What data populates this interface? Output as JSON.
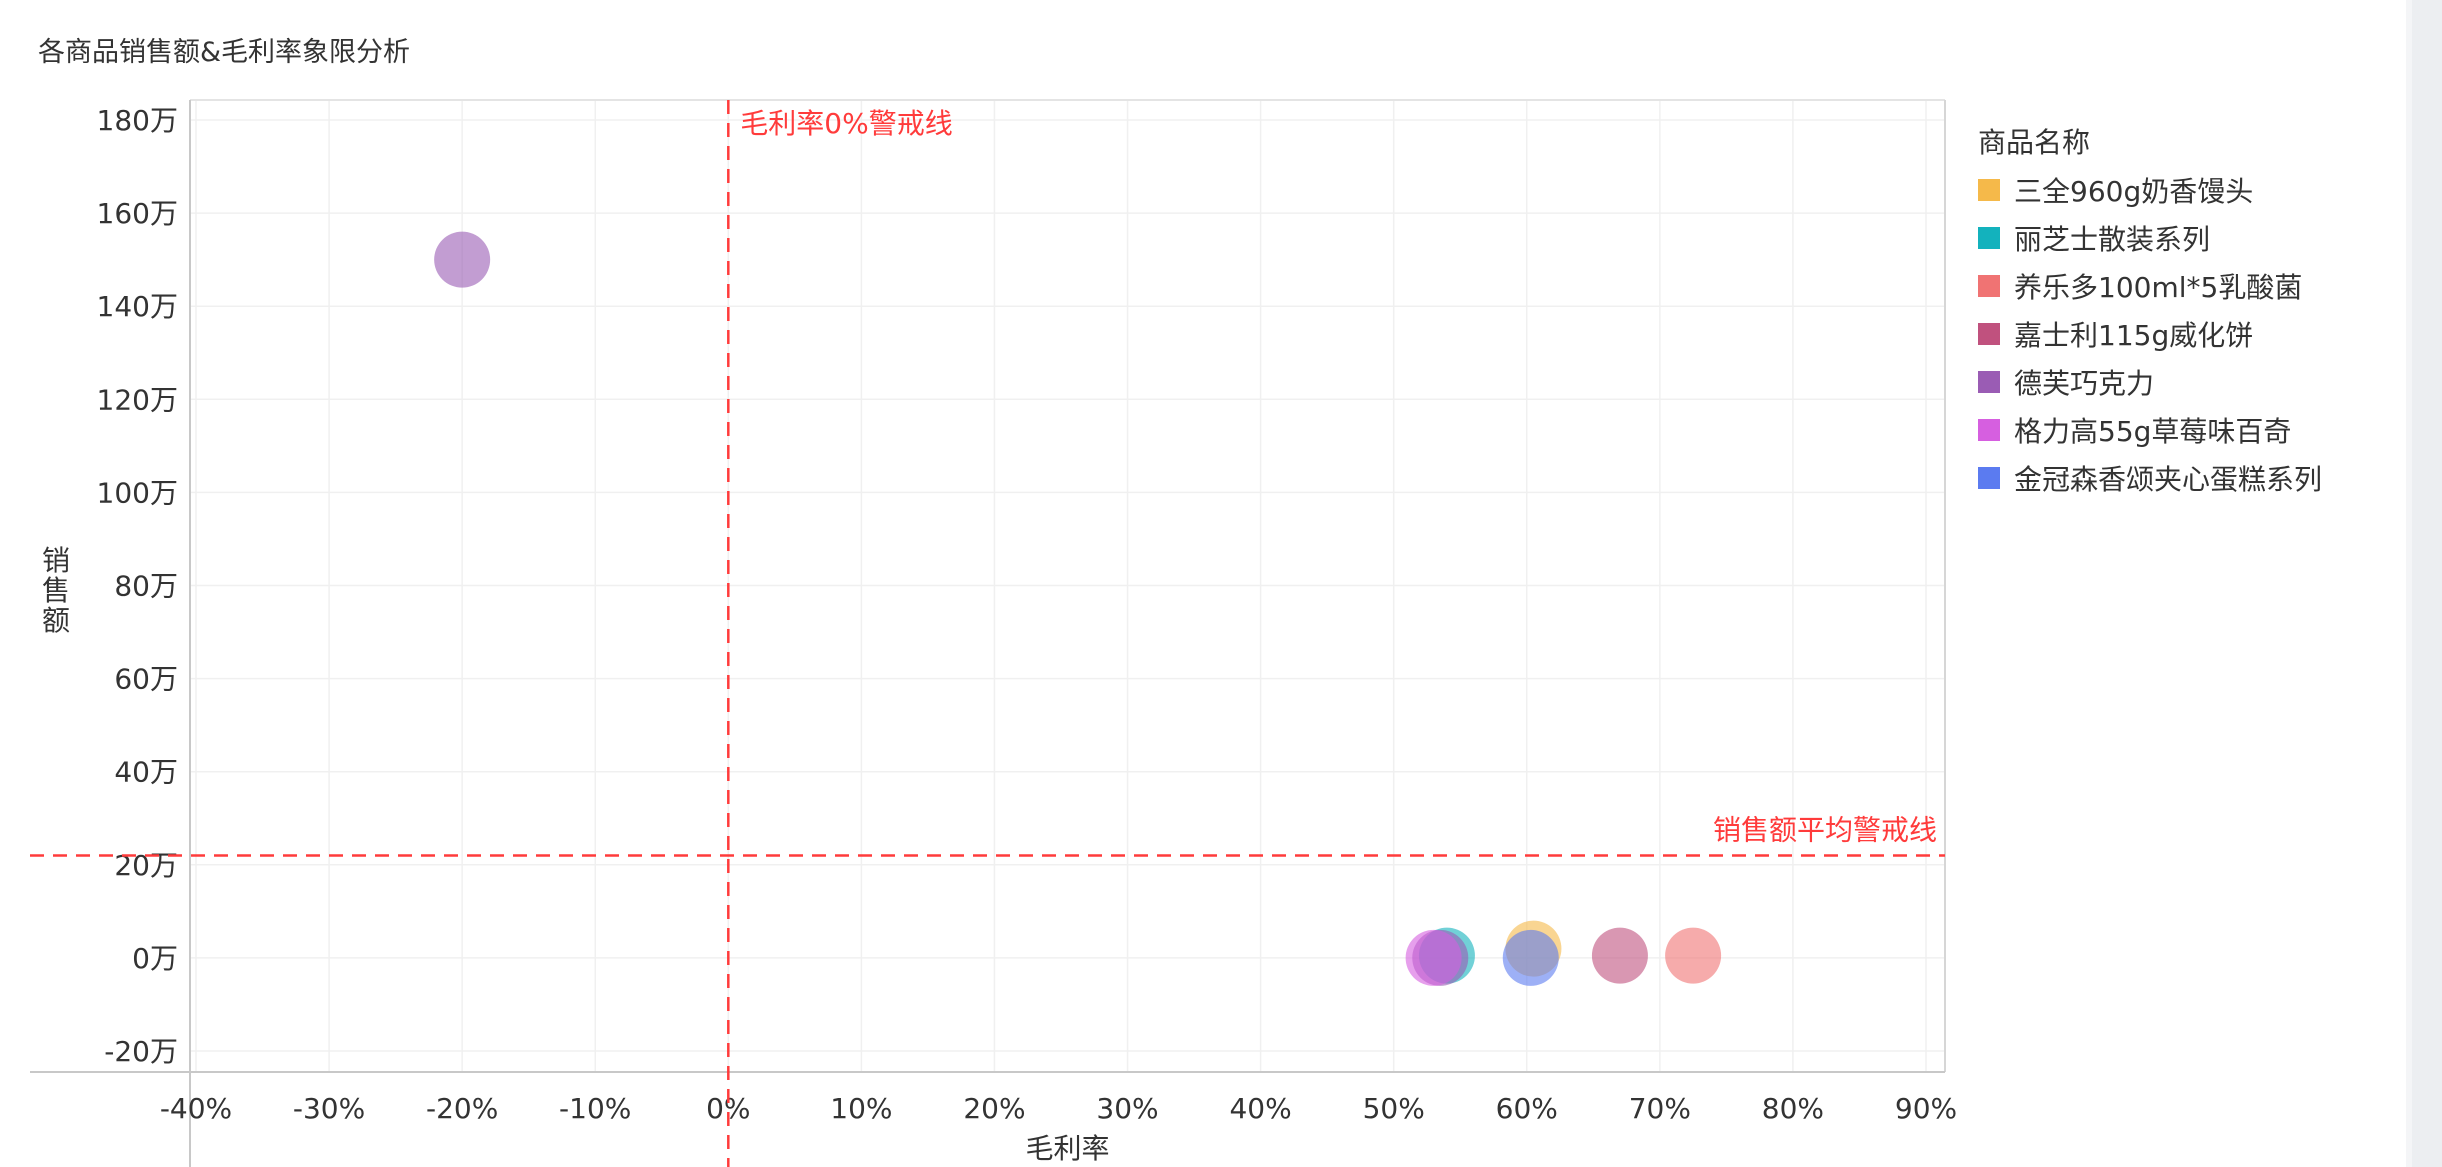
{
  "chart_data": {
    "type": "scatter",
    "title": "各商品销售额&毛利率象限分析",
    "xlabel": "毛利率",
    "ylabel": "销售额",
    "x_ticks": [
      "-40%",
      "-30%",
      "-20%",
      "-10%",
      "0%",
      "10%",
      "20%",
      "30%",
      "40%",
      "50%",
      "60%",
      "70%",
      "80%",
      "90%"
    ],
    "x_tick_values": [
      -0.4,
      -0.3,
      -0.2,
      -0.1,
      0,
      0.1,
      0.2,
      0.3,
      0.4,
      0.5,
      0.6,
      0.7,
      0.8,
      0.9
    ],
    "y_ticks": [
      "-20万",
      "0万",
      "20万",
      "40万",
      "60万",
      "80万",
      "100万",
      "120万",
      "140万",
      "160万",
      "180万"
    ],
    "y_tick_values": [
      -200000,
      0,
      200000,
      400000,
      600000,
      800000,
      1000000,
      1200000,
      1400000,
      1600000,
      1800000
    ],
    "xlim": [
      -0.4,
      0.9
    ],
    "ylim": [
      -200000,
      1800000
    ],
    "grid": true,
    "legend_title": "商品名称",
    "legend_position": "right",
    "reference_lines": [
      {
        "axis": "x",
        "value": 0,
        "label": "毛利率0%警戒线",
        "color": "#ff3b3b",
        "style": "dashed"
      },
      {
        "axis": "y",
        "value": 220000,
        "label": "销售额平均警戒线",
        "color": "#ff3b3b",
        "style": "dashed"
      }
    ],
    "series": [
      {
        "name": "三全960g奶香馒头",
        "color": "#f5b94a",
        "points": [
          {
            "x": 0.605,
            "y": 20000
          }
        ]
      },
      {
        "name": "丽芝士散装系列",
        "color": "#13b2bd",
        "points": [
          {
            "x": 0.54,
            "y": 5000
          }
        ]
      },
      {
        "name": "养乐多100ml*5乳酸菌",
        "color": "#f07373",
        "points": [
          {
            "x": 0.725,
            "y": 5000
          }
        ]
      },
      {
        "name": "嘉士利115g威化饼",
        "color": "#c0517e",
        "points": [
          {
            "x": 0.67,
            "y": 5000
          }
        ]
      },
      {
        "name": "德芙巧克力",
        "color": "#9a5cb4",
        "points": [
          {
            "x": -0.2,
            "y": 1500000
          },
          {
            "x": 0.535,
            "y": 0
          }
        ]
      },
      {
        "name": "格力高55g草莓味百奇",
        "color": "#d65fe0",
        "points": [
          {
            "x": 0.53,
            "y": 0
          }
        ]
      },
      {
        "name": "金冠森香颂夹心蛋糕系列",
        "color": "#5b7bf0",
        "points": [
          {
            "x": 0.603,
            "y": 0
          }
        ]
      }
    ]
  }
}
